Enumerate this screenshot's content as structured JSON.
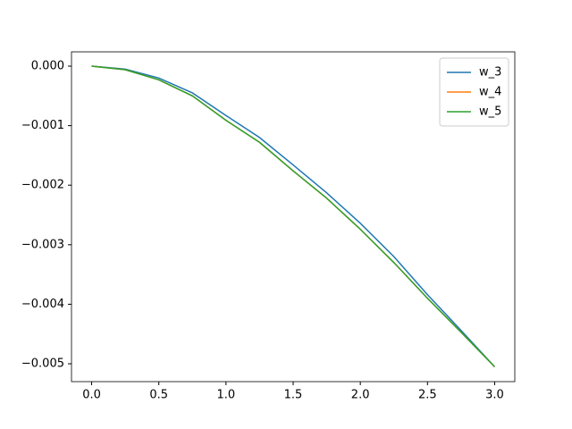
{
  "chart_data": {
    "type": "line",
    "x": [
      0,
      0.25,
      0.5,
      0.75,
      1,
      1.25,
      1.5,
      1.75,
      2,
      2.25,
      2.5,
      2.75,
      3
    ],
    "series": [
      {
        "name": "w_3",
        "color": "#1f77b4",
        "values": [
          0,
          -5e-05,
          -0.0002,
          -0.00045,
          -0.00083,
          -0.0012,
          -0.00166,
          -0.00213,
          -0.00264,
          -0.0032,
          -0.00384,
          -0.00444,
          -0.00505
        ]
      },
      {
        "name": "w_4",
        "color": "#ff7f0e",
        "values": [
          0,
          -6e-05,
          -0.00023,
          -0.0005,
          -0.00091,
          -0.00128,
          -0.00176,
          -0.00222,
          -0.00274,
          -0.0033,
          -0.0039,
          -0.00447,
          -0.00505
        ]
      },
      {
        "name": "w_5",
        "color": "#2ca02c",
        "values": [
          0,
          -6e-05,
          -0.00023,
          -0.0005,
          -0.00091,
          -0.00128,
          -0.00176,
          -0.00222,
          -0.00274,
          -0.0033,
          -0.0039,
          -0.00447,
          -0.00505
        ]
      }
    ],
    "xlim": [
      -0.15,
      3.15
    ],
    "ylim": [
      -0.0053,
      0.00024
    ],
    "xticks": [
      {
        "value": 0,
        "label": "0.0"
      },
      0.5,
      {
        "value": 1,
        "label": "1.0"
      },
      1.5,
      {
        "value": 2,
        "label": "2.0"
      },
      2.5,
      {
        "value": 3,
        "label": "3.0"
      }
    ],
    "yticks": [
      {
        "value": 0,
        "label": "0.000"
      },
      {
        "value": -0.001,
        "label": "−0.001"
      },
      {
        "value": -0.002,
        "label": "−0.002"
      },
      {
        "value": -0.003,
        "label": "−0.003"
      },
      {
        "value": -0.004,
        "label": "−0.004"
      },
      {
        "value": -0.005,
        "label": "−0.005"
      }
    ],
    "grid": false,
    "legend": "upper-right"
  }
}
